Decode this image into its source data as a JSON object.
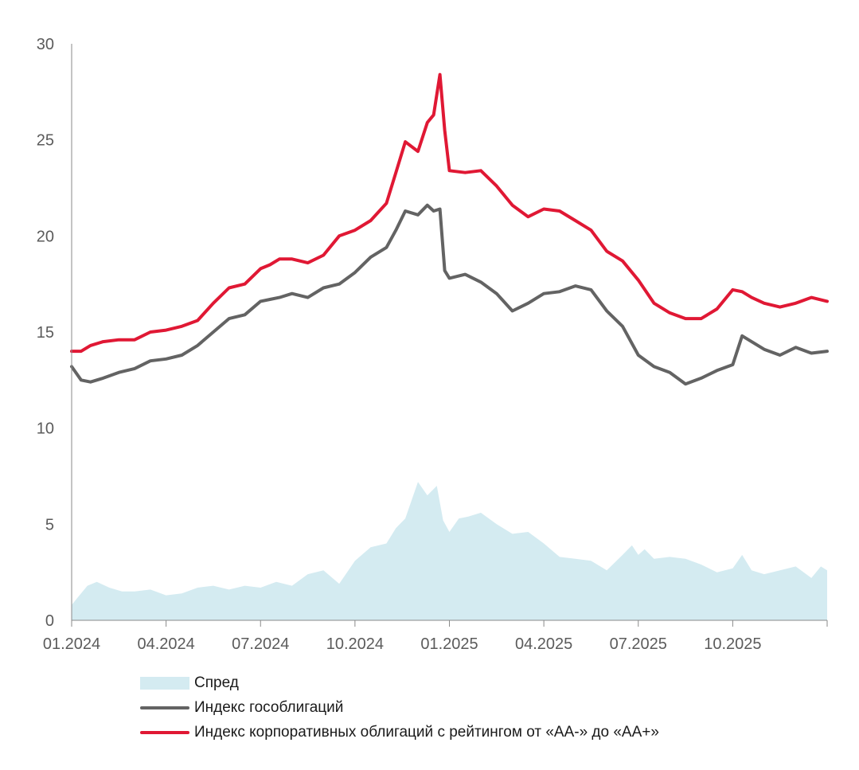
{
  "colors": {
    "spread": "#d4ebf1",
    "gov": "#636363",
    "corp": "#e01834",
    "axis": "#8a8a8a"
  },
  "chart_data": {
    "type": "line",
    "title": "",
    "xlabel": "",
    "ylabel": "",
    "ylim": [
      0,
      30
    ],
    "yticks": [
      "0",
      "5",
      "10",
      "15",
      "20",
      "25",
      "30"
    ],
    "xticks": [
      "01.2024",
      "04.2024",
      "07.2024",
      "10.2024",
      "01.2025",
      "04.2025",
      "07.2025",
      "10.2025"
    ],
    "x_domain_months": [
      0,
      24
    ],
    "legend_position": "bottom-left",
    "series": [
      {
        "name": "Спред",
        "kind": "area",
        "x": [
          0,
          0.2,
          0.5,
          0.8,
          1.2,
          1.6,
          2.0,
          2.5,
          3.0,
          3.5,
          4.0,
          4.5,
          5.0,
          5.5,
          6.0,
          6.5,
          7.0,
          7.5,
          8.0,
          8.5,
          9.0,
          9.5,
          10.0,
          10.3,
          10.6,
          11.0,
          11.3,
          11.6,
          11.8,
          12.0,
          12.3,
          12.6,
          13.0,
          13.5,
          14.0,
          14.5,
          15.0,
          15.5,
          16.0,
          16.5,
          17.0,
          17.5,
          17.8,
          18.0,
          18.2,
          18.5,
          19.0,
          19.5,
          20.0,
          20.5,
          21.0,
          21.3,
          21.6,
          22.0,
          22.5,
          23.0,
          23.5,
          23.8,
          24.0
        ],
        "values": [
          0.8,
          1.2,
          1.8,
          2.0,
          1.7,
          1.5,
          1.5,
          1.6,
          1.3,
          1.4,
          1.7,
          1.8,
          1.6,
          1.8,
          1.7,
          2.0,
          1.8,
          2.4,
          2.6,
          1.9,
          3.1,
          3.8,
          4.0,
          4.8,
          5.3,
          7.2,
          6.5,
          7.0,
          5.2,
          4.6,
          5.3,
          5.4,
          5.6,
          5.0,
          4.5,
          4.6,
          4.0,
          3.3,
          3.2,
          3.1,
          2.6,
          3.4,
          3.9,
          3.4,
          3.7,
          3.2,
          3.3,
          3.2,
          2.9,
          2.5,
          2.7,
          3.4,
          2.6,
          2.4,
          2.6,
          2.8,
          2.2,
          2.8,
          2.6
        ]
      },
      {
        "name": "Индекс гособлигаций",
        "kind": "line",
        "x": [
          0,
          0.3,
          0.6,
          1.0,
          1.5,
          2.0,
          2.5,
          3.0,
          3.5,
          4.0,
          4.5,
          5.0,
          5.5,
          6.0,
          6.3,
          6.6,
          7.0,
          7.5,
          8.0,
          8.5,
          9.0,
          9.5,
          10.0,
          10.3,
          10.6,
          11.0,
          11.3,
          11.5,
          11.7,
          11.85,
          12.0,
          12.5,
          13.0,
          13.5,
          14.0,
          14.5,
          15.0,
          15.5,
          16.0,
          16.5,
          17.0,
          17.5,
          18.0,
          18.5,
          19.0,
          19.5,
          20.0,
          20.5,
          21.0,
          21.3,
          21.6,
          22.0,
          22.5,
          23.0,
          23.5,
          24.0
        ],
        "values": [
          13.2,
          12.5,
          12.4,
          12.6,
          12.9,
          13.1,
          13.5,
          13.6,
          13.8,
          14.3,
          15.0,
          15.7,
          15.9,
          16.6,
          16.7,
          16.8,
          17.0,
          16.8,
          17.3,
          17.5,
          18.1,
          18.9,
          19.4,
          20.3,
          21.3,
          21.1,
          21.6,
          21.3,
          21.4,
          18.2,
          17.8,
          18.0,
          17.6,
          17.0,
          16.1,
          16.5,
          17.0,
          17.1,
          17.4,
          17.2,
          16.1,
          15.3,
          13.8,
          13.2,
          12.9,
          12.3,
          12.6,
          13.0,
          13.3,
          14.8,
          14.5,
          14.1,
          13.8,
          14.2,
          13.9,
          14.0
        ]
      },
      {
        "name": "Индекс корпоративных облигаций с рейтингом от «AA-» до «AA+»",
        "kind": "line",
        "x": [
          0,
          0.3,
          0.6,
          1.0,
          1.5,
          2.0,
          2.5,
          3.0,
          3.5,
          4.0,
          4.5,
          5.0,
          5.5,
          6.0,
          6.3,
          6.6,
          7.0,
          7.5,
          8.0,
          8.5,
          9.0,
          9.5,
          10.0,
          10.3,
          10.6,
          11.0,
          11.3,
          11.5,
          11.7,
          11.85,
          12.0,
          12.5,
          13.0,
          13.5,
          14.0,
          14.5,
          15.0,
          15.5,
          16.0,
          16.5,
          17.0,
          17.5,
          18.0,
          18.5,
          19.0,
          19.5,
          20.0,
          20.5,
          21.0,
          21.3,
          21.6,
          22.0,
          22.5,
          23.0,
          23.5,
          24.0
        ],
        "values": [
          14.0,
          14.0,
          14.3,
          14.5,
          14.6,
          14.6,
          15.0,
          15.1,
          15.3,
          15.6,
          16.5,
          17.3,
          17.5,
          18.3,
          18.5,
          18.8,
          18.8,
          18.6,
          19.0,
          20.0,
          20.3,
          20.8,
          21.7,
          23.3,
          24.9,
          24.4,
          25.9,
          26.3,
          28.4,
          25.5,
          23.4,
          23.3,
          23.4,
          22.6,
          21.6,
          21.0,
          21.4,
          21.3,
          20.8,
          20.3,
          19.2,
          18.7,
          17.7,
          16.5,
          16.0,
          15.7,
          15.7,
          16.2,
          17.2,
          17.1,
          16.8,
          16.5,
          16.3,
          16.5,
          16.8,
          16.6
        ]
      }
    ]
  }
}
